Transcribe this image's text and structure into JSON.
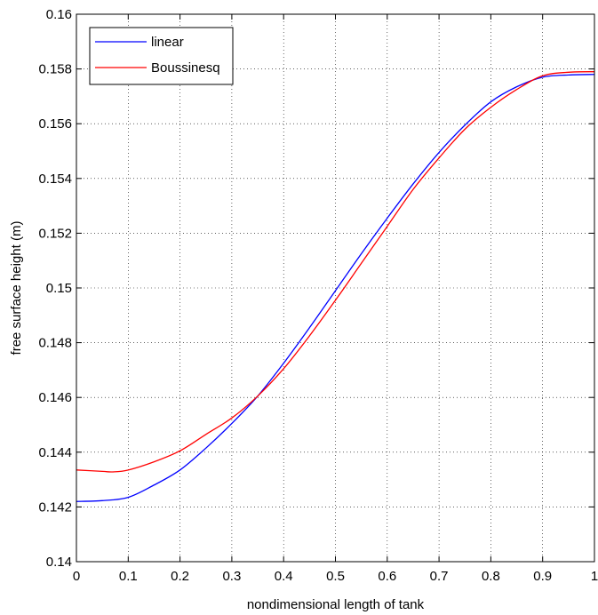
{
  "chart_data": {
    "type": "line",
    "title": "",
    "xlabel": "nondimensional length of tank",
    "ylabel": "free surface height (m)",
    "xlim": [
      0,
      1
    ],
    "ylim": [
      0.14,
      0.16
    ],
    "xticks": [
      0,
      0.1,
      0.2,
      0.3,
      0.4,
      0.5,
      0.6,
      0.7,
      0.8,
      0.9,
      1
    ],
    "xtick_labels": [
      "0",
      "0.1",
      "0.2",
      "0.3",
      "0.4",
      "0.5",
      "0.6",
      "0.7",
      "0.8",
      "0.9",
      "1"
    ],
    "yticks": [
      0.14,
      0.142,
      0.144,
      0.146,
      0.148,
      0.15,
      0.152,
      0.154,
      0.156,
      0.158,
      0.16
    ],
    "ytick_labels": [
      "0.14",
      "0.142",
      "0.144",
      "0.146",
      "0.148",
      "0.15",
      "0.152",
      "0.154",
      "0.156",
      "0.158",
      "0.16"
    ],
    "grid": true,
    "legend_position": "top-left",
    "series": [
      {
        "name": "linear",
        "color": "#0000ff",
        "x": [
          0,
          0.05,
          0.1,
          0.15,
          0.2,
          0.25,
          0.3,
          0.35,
          0.4,
          0.45,
          0.5,
          0.55,
          0.6,
          0.65,
          0.7,
          0.75,
          0.8,
          0.85,
          0.9,
          0.95,
          1.0
        ],
        "y": [
          0.1422,
          0.14223,
          0.14235,
          0.1428,
          0.14335,
          0.14415,
          0.14505,
          0.14605,
          0.14725,
          0.14855,
          0.1499,
          0.15125,
          0.15255,
          0.1538,
          0.15495,
          0.15595,
          0.1568,
          0.15735,
          0.1577,
          0.15778,
          0.1578
        ]
      },
      {
        "name": "Boussinesq",
        "color": "#ff0000",
        "x": [
          0,
          0.05,
          0.07,
          0.1,
          0.15,
          0.2,
          0.25,
          0.3,
          0.35,
          0.4,
          0.45,
          0.5,
          0.55,
          0.6,
          0.65,
          0.7,
          0.75,
          0.8,
          0.85,
          0.9,
          0.95,
          1.0
        ],
        "y": [
          0.14335,
          0.1433,
          0.14328,
          0.14335,
          0.14365,
          0.14405,
          0.14465,
          0.14525,
          0.14605,
          0.14705,
          0.14825,
          0.14955,
          0.1509,
          0.15225,
          0.1536,
          0.15475,
          0.1558,
          0.1566,
          0.15725,
          0.15775,
          0.15788,
          0.1579
        ]
      }
    ]
  }
}
